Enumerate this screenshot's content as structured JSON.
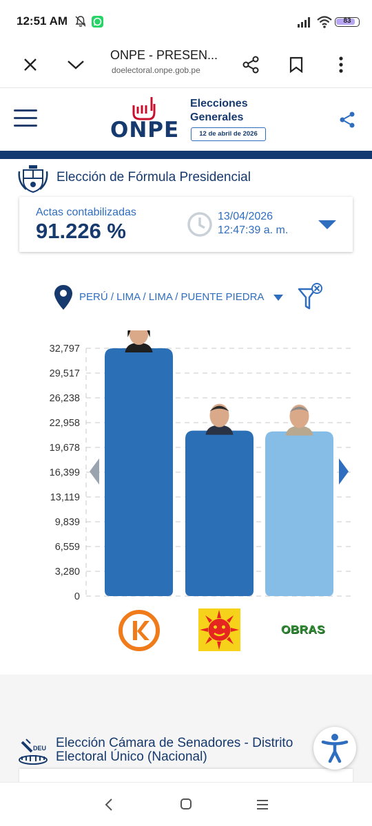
{
  "status_bar": {
    "time": "12:51 AM",
    "battery": "83"
  },
  "browser": {
    "title": "ONPE - PRESEN...",
    "url": "doelectoral.onpe.gob.pe"
  },
  "site": {
    "logo_text": "ONPE",
    "logo_title_line1": "Elecciones",
    "logo_title_line2": "Generales",
    "logo_date": "12 de abril de 2026"
  },
  "section": {
    "title": "Elección de Fórmula Presidencial"
  },
  "actas": {
    "label": "Actas contabilizadas",
    "value": "91.226 %",
    "date": "13/04/2026",
    "time": "12:47:39 a. m."
  },
  "location": {
    "path": "PERÚ / LIMA / LIMA / PUENTE PIEDRA"
  },
  "chart_data": {
    "type": "bar",
    "categories": [
      "Fuerza Popular",
      "Renovación Popular",
      "Obras"
    ],
    "values": [
      32797,
      21900,
      21800
    ],
    "y_ticks": [
      "32,797",
      "29,517",
      "26,238",
      "22,958",
      "19,678",
      "16,399",
      "13,119",
      "9,839",
      "6,559",
      "3,280",
      "0"
    ],
    "ylim": [
      0,
      32797
    ],
    "bar_colors": [
      "#2b6fb6",
      "#2b6fb6",
      "#86bde6"
    ],
    "grid": true
  },
  "parties": {
    "obras_label": "OBRAS"
  },
  "section2": {
    "title": "Elección Cámara de Senadores - Distrito Electoral Único (Nacional)"
  },
  "colors": {
    "primary": "#163a6e",
    "accent": "#2f6dbf",
    "band": "#123a70"
  }
}
